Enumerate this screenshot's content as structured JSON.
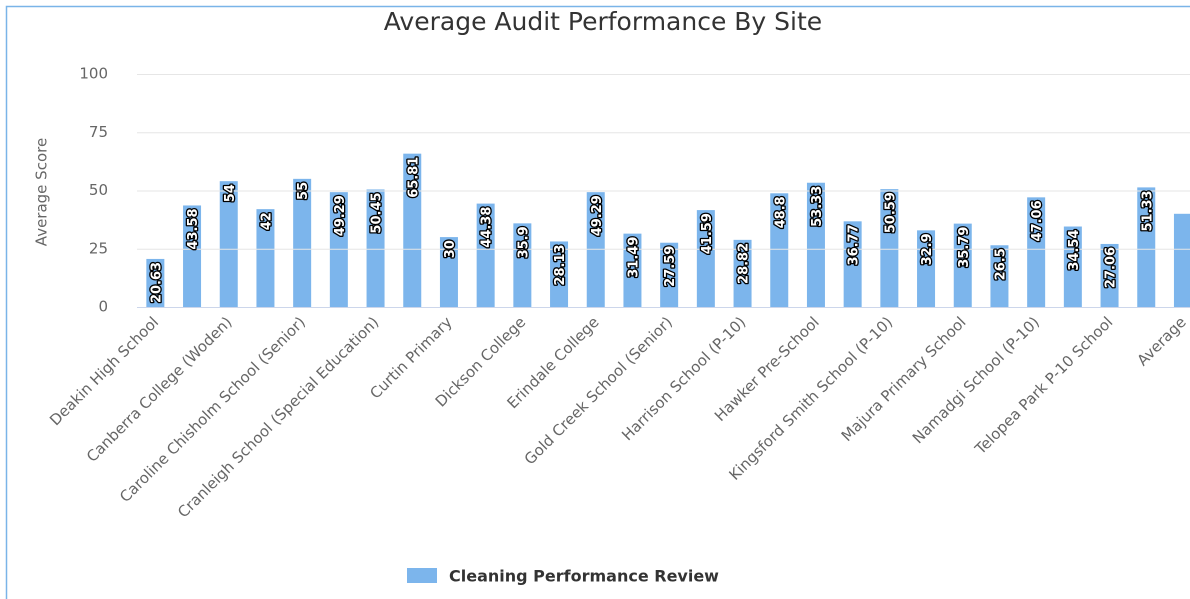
{
  "chart_data": {
    "type": "bar",
    "title": "Average Audit Performance By Site",
    "y_label": "Average Score",
    "categories": [
      "Deakin High School",
      null,
      "Canberra College (Woden)",
      null,
      "Caroline Chisholm School (Senior)",
      null,
      "Cranleigh School (Special Education)",
      null,
      "Curtin Primary",
      null,
      "Dickson College",
      null,
      "Erindale College",
      null,
      "Gold Creek School (Senior)",
      null,
      "Harrison School (P-10)",
      null,
      "Hawker Pre-School",
      null,
      "Kingsford Smith School (P-10)",
      null,
      "Majura Primary School",
      null,
      "Namadgi School (P-10)",
      null,
      "Telopea Park P-10 School",
      null,
      "Average"
    ],
    "series": [
      {
        "name": "Cleaning Performance Review",
        "color": "#7cb5ec",
        "values": [
          20.63,
          43.58,
          54,
          42,
          55,
          49.29,
          50.45,
          65.81,
          30,
          44.38,
          35.9,
          28.13,
          49.29,
          31.49,
          27.59,
          41.59,
          28.82,
          48.8,
          53.33,
          36.77,
          50.59,
          32.9,
          35.79,
          26.5,
          47.06,
          34.54,
          27.06,
          51.33,
          40
        ]
      }
    ],
    "ylim": [
      0,
      100
    ],
    "yticks": [
      0,
      25,
      50,
      75,
      100
    ],
    "grid": true,
    "legend": "bottom"
  }
}
